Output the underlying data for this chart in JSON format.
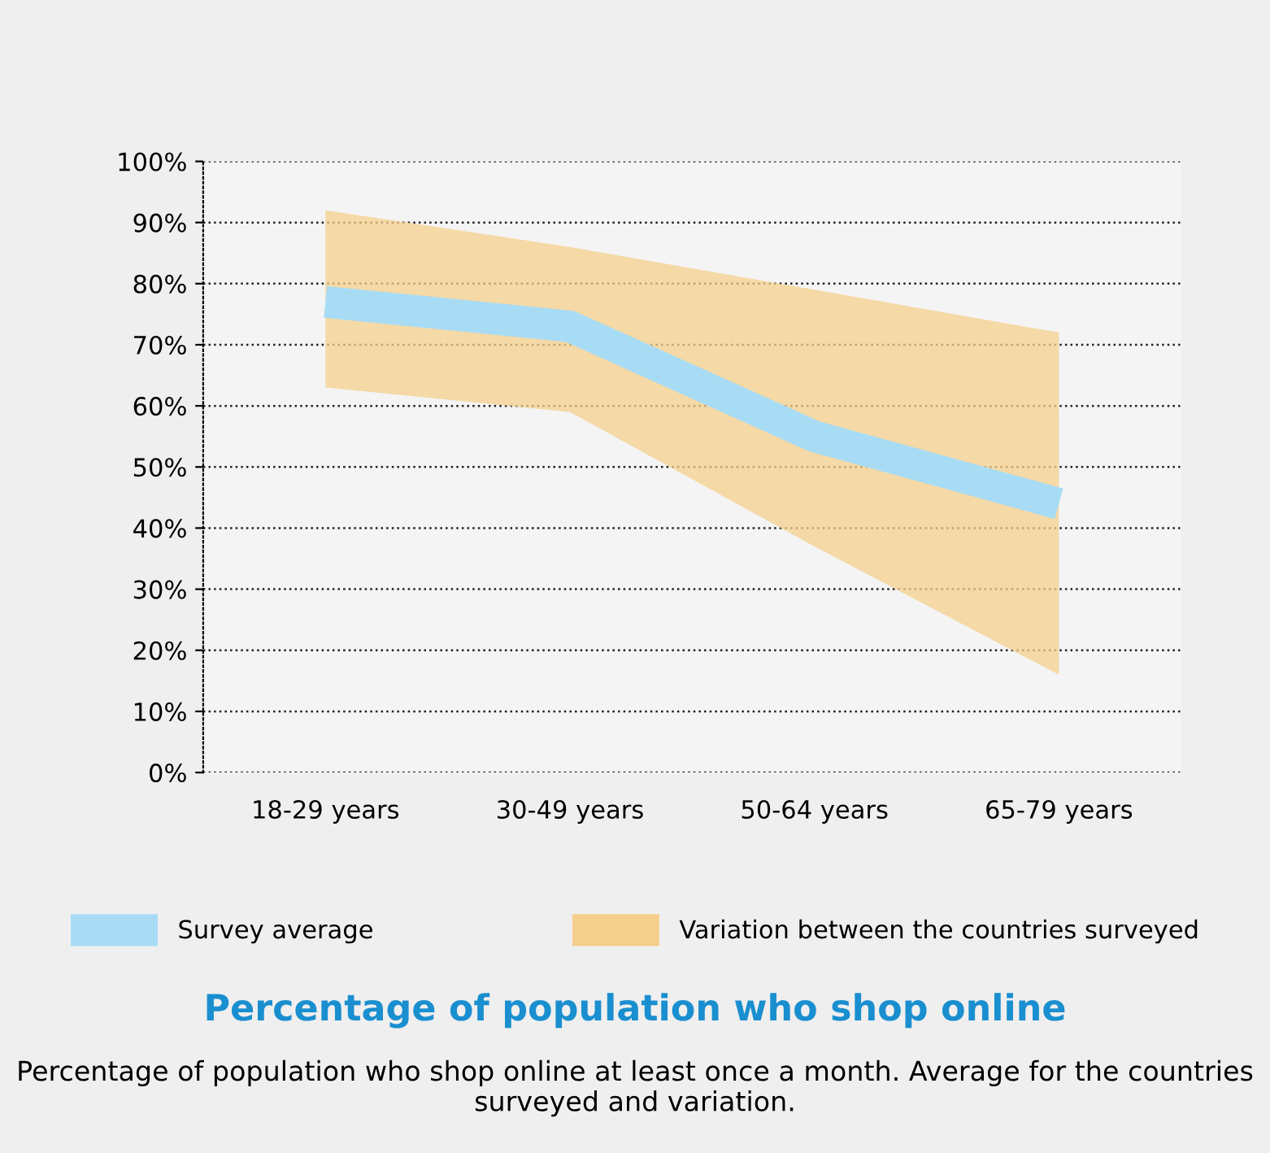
{
  "chart_data": {
    "type": "line",
    "title": "Percentage of population who shop online",
    "subtitle": "Percentage of population who shop online at least once a month. Average for the countries surveyed and variation.",
    "categories": [
      "18-29 years",
      "30-49 years",
      "50-64 years",
      "65-79 years"
    ],
    "series": [
      {
        "name": "Survey average",
        "color": "#a8dcf5",
        "values": [
          77,
          73,
          55,
          44
        ]
      },
      {
        "name": "Variation between the countries surveyed",
        "type": "area",
        "color": "#f5d08c",
        "values": [
          null,
          null,
          null,
          null
        ],
        "lower": [
          63,
          59,
          37,
          16
        ],
        "upper": [
          92,
          86,
          79,
          72
        ]
      }
    ],
    "ylim": [
      0,
      100
    ],
    "yticks": [
      {
        "value": 0,
        "label": "0%"
      },
      {
        "value": 10,
        "label": "10%"
      },
      {
        "value": 20,
        "label": "20%"
      },
      {
        "value": 30,
        "label": "30%"
      },
      {
        "value": 40,
        "label": "40%"
      },
      {
        "value": 50,
        "label": "50%"
      },
      {
        "value": 60,
        "label": "60%"
      },
      {
        "value": 70,
        "label": "70%"
      },
      {
        "value": 80,
        "label": "80%"
      },
      {
        "value": 90,
        "label": "90%"
      },
      {
        "value": 100,
        "label": "100%"
      }
    ],
    "grid": "y",
    "legend": "bottom",
    "line_style": "solid",
    "marker": "none"
  }
}
